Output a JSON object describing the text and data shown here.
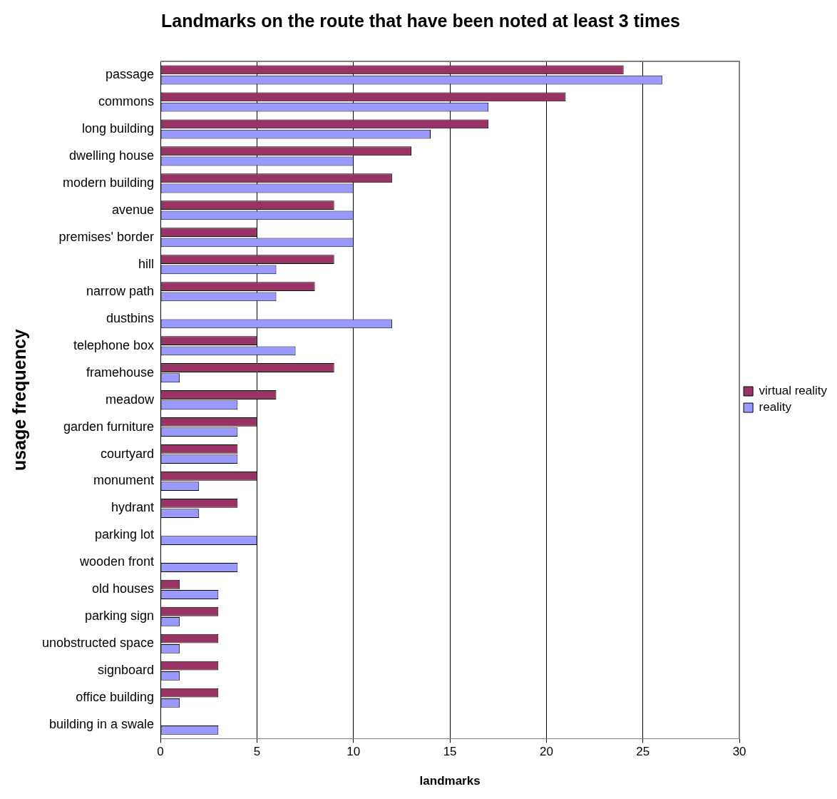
{
  "chart_data": {
    "type": "bar",
    "orientation": "horizontal",
    "title": "Landmarks on the route that have been noted at least 3 times",
    "xlabel": "landmarks",
    "ylabel": "usage frequency",
    "categories": [
      "passage",
      "commons",
      "long building",
      "dwelling house",
      "modern building",
      "avenue",
      "premises' border",
      "hill",
      "narrow path",
      "dustbins",
      "telephone box",
      "framehouse",
      "meadow",
      "garden furniture",
      "courtyard",
      "monument",
      "hydrant",
      "parking lot",
      "wooden front",
      "old houses",
      "parking sign",
      "unobstructed space",
      "signboard",
      "office building",
      "building in a swale"
    ],
    "series": [
      {
        "name": "virtual reality",
        "color": "#993366",
        "values": [
          24,
          21,
          17,
          13,
          12,
          9,
          5,
          9,
          8,
          null,
          5,
          9,
          6,
          5,
          4,
          5,
          4,
          null,
          null,
          1,
          3,
          3,
          3,
          3,
          null
        ]
      },
      {
        "name": "reality",
        "color": "#9999ff",
        "values": [
          26,
          17,
          14,
          10,
          10,
          10,
          10,
          6,
          6,
          12,
          7,
          1,
          4,
          4,
          4,
          2,
          2,
          5,
          4,
          3,
          1,
          1,
          1,
          1,
          3
        ]
      }
    ],
    "xlim": [
      0,
      30
    ],
    "xticks": [
      0,
      5,
      10,
      15,
      20,
      25,
      30
    ],
    "grid": "x",
    "legend": "right"
  }
}
